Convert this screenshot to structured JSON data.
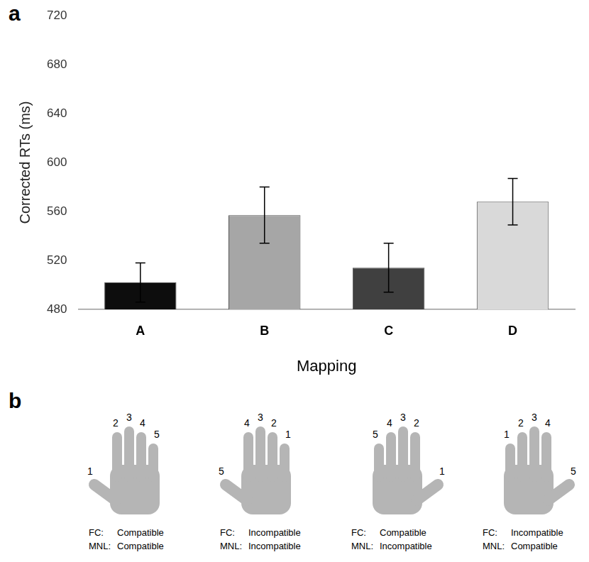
{
  "chart_data": {
    "type": "bar",
    "panel_label": "a",
    "x_label": "Mapping",
    "y_label": "Corrected RTs (ms)",
    "categories": [
      "A",
      "B",
      "C",
      "D"
    ],
    "values": [
      502,
      557,
      514,
      568
    ],
    "errors": [
      16,
      23,
      20,
      19
    ],
    "colors": [
      "#0d0d0d",
      "#a6a6a6",
      "#404040",
      "#d9d9d9"
    ],
    "ylim": [
      480,
      720
    ],
    "yticks": [
      480,
      520,
      560,
      600,
      640,
      680,
      720
    ],
    "grid": false
  },
  "figure_b": {
    "panel_label": "b",
    "hands": [
      {
        "labels": [
          1,
          2,
          3,
          4,
          5
        ],
        "rows": [
          [
            "FC:",
            "Compatible"
          ],
          [
            "MNL:",
            "Compatible"
          ]
        ]
      },
      {
        "labels": [
          5,
          4,
          3,
          2,
          1
        ],
        "rows": [
          [
            "FC:",
            "Incompatible"
          ],
          [
            "MNL:",
            "Incompatible"
          ]
        ]
      },
      {
        "labels": [
          5,
          4,
          3,
          2,
          1
        ],
        "rows": [
          [
            "FC:",
            "Compatible"
          ],
          [
            "MNL:",
            "Incompatible"
          ]
        ]
      },
      {
        "labels": [
          1,
          2,
          3,
          4,
          5
        ],
        "rows": [
          [
            "FC:",
            "Incompatible"
          ],
          [
            "MNL:",
            "Compatible"
          ]
        ]
      }
    ]
  }
}
